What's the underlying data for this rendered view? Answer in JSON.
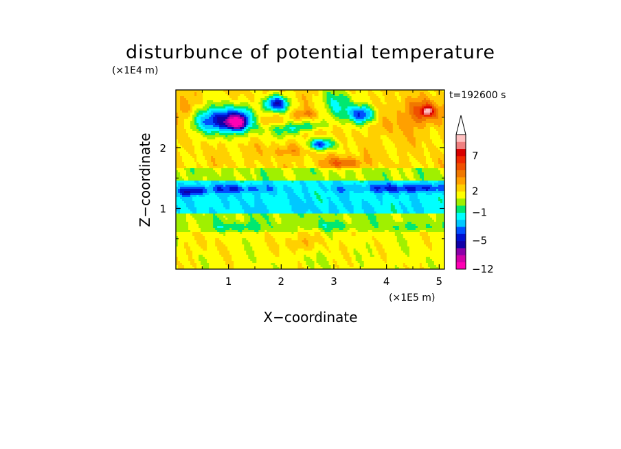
{
  "chart_data": {
    "type": "heatmap",
    "title": "disturbunce of potential temperature",
    "xlabel": "X−coordinate",
    "ylabel": "Z−coordinate",
    "x_unit": "(×1E5 m)",
    "y_unit": "(×1E4 m)",
    "time_label": "t=192600 s",
    "xlim": [
      0,
      5.1
    ],
    "ylim": [
      0,
      2.95
    ],
    "x_ticks": [
      {
        "value": 1,
        "label": "1"
      },
      {
        "value": 2,
        "label": "2"
      },
      {
        "value": 3,
        "label": "3"
      },
      {
        "value": 4,
        "label": "4"
      },
      {
        "value": 5,
        "label": "5"
      }
    ],
    "y_ticks": [
      {
        "value": 1,
        "label": "1"
      },
      {
        "value": 2,
        "label": "2"
      }
    ],
    "colorbar": {
      "levels": [
        {
          "min": -12,
          "max": -10,
          "color": "#ff00b4"
        },
        {
          "min": -10,
          "max": -8,
          "color": "#d200a8"
        },
        {
          "min": -8,
          "max": -6,
          "color": "#8c00a8"
        },
        {
          "min": -6,
          "max": -5,
          "color": "#1000a8"
        },
        {
          "min": -5,
          "max": -4,
          "color": "#0010d0"
        },
        {
          "min": -4,
          "max": -3,
          "color": "#0050ff"
        },
        {
          "min": -3,
          "max": -2,
          "color": "#00c8ff"
        },
        {
          "min": -2,
          "max": -1,
          "color": "#00ffff"
        },
        {
          "min": -1,
          "max": 0,
          "color": "#00e870"
        },
        {
          "min": 0,
          "max": 1,
          "color": "#a0f000"
        },
        {
          "min": 1,
          "max": 2,
          "color": "#ffff00"
        },
        {
          "min": 2,
          "max": 3,
          "color": "#ffd000"
        },
        {
          "min": 3,
          "max": 4,
          "color": "#ffa000"
        },
        {
          "min": 4,
          "max": 5,
          "color": "#f07800"
        },
        {
          "min": 5,
          "max": 6,
          "color": "#f05000"
        },
        {
          "min": 6,
          "max": 7,
          "color": "#f02800"
        },
        {
          "min": 7,
          "max": 8,
          "color": "#d80000"
        },
        {
          "min": 8,
          "max": 9,
          "color": "#f08080"
        },
        {
          "min": 9,
          "max": 10,
          "color": "#ffc0c0"
        }
      ],
      "tick_labels": [
        {
          "value": 7,
          "label": "7"
        },
        {
          "value": 2,
          "label": "2"
        },
        {
          "value": -1,
          "label": "−1"
        },
        {
          "value": -5,
          "label": "−5"
        },
        {
          "value": -12,
          "label": "−12"
        }
      ],
      "extend": "max",
      "extend_color": "#ffffff"
    },
    "features": [
      {
        "x": 2.55,
        "z": 0.15,
        "a": 0.3,
        "b": 0.15,
        "v": 0.8
      },
      {
        "x": 0.55,
        "z": 0.4,
        "a": 0.55,
        "b": 0.17,
        "v": 2.3
      },
      {
        "x": 2.3,
        "z": 0.42,
        "a": 0.35,
        "b": 0.14,
        "v": 2.2
      },
      {
        "x": 3.1,
        "z": 0.38,
        "a": 0.35,
        "b": 0.14,
        "v": 2.0
      },
      {
        "x": 4.75,
        "z": 0.45,
        "a": 0.4,
        "b": 0.15,
        "v": 2.3
      },
      {
        "x": 1.2,
        "z": 0.7,
        "a": 0.5,
        "b": 0.08,
        "v": -0.8
      },
      {
        "x": 3.0,
        "z": 0.72,
        "a": 0.55,
        "b": 0.06,
        "v": -0.6
      },
      {
        "x": 4.5,
        "z": 0.7,
        "a": 0.4,
        "b": 0.07,
        "v": -0.7
      },
      {
        "x": 0.3,
        "z": 1.28,
        "a": 0.3,
        "b": 0.07,
        "v": -4.5
      },
      {
        "x": 1.15,
        "z": 1.32,
        "a": 0.65,
        "b": 0.07,
        "v": -4.3
      },
      {
        "x": 4.4,
        "z": 1.33,
        "a": 1.1,
        "b": 0.07,
        "v": -4.5
      },
      {
        "x": 2.5,
        "z": 0.98,
        "a": 1.6,
        "b": 0.18,
        "v": -2.0
      },
      {
        "x": 0.95,
        "z": 2.45,
        "a": 0.55,
        "b": 0.22,
        "v": -5.0
      },
      {
        "x": 1.15,
        "z": 2.42,
        "a": 0.15,
        "b": 0.1,
        "v": -8.0
      },
      {
        "x": 1.9,
        "z": 2.72,
        "a": 0.22,
        "b": 0.13,
        "v": -5.0
      },
      {
        "x": 2.75,
        "z": 2.05,
        "a": 0.25,
        "b": 0.09,
        "v": -4.0
      },
      {
        "x": 3.55,
        "z": 2.55,
        "a": 0.25,
        "b": 0.14,
        "v": -3.5
      },
      {
        "x": 2.3,
        "z": 2.3,
        "a": 0.45,
        "b": 0.13,
        "v": -1.3
      },
      {
        "x": 3.1,
        "z": 2.7,
        "a": 0.3,
        "b": 0.3,
        "v": -1.0
      },
      {
        "x": 4.7,
        "z": 2.6,
        "a": 0.45,
        "b": 0.2,
        "v": 5.0
      },
      {
        "x": 4.78,
        "z": 2.6,
        "a": 0.12,
        "b": 0.08,
        "v": 7.5
      },
      {
        "x": 1.75,
        "z": 2.45,
        "a": 0.4,
        "b": 0.1,
        "v": 3.8
      },
      {
        "x": 2.15,
        "z": 1.95,
        "a": 0.35,
        "b": 0.1,
        "v": 3.5
      },
      {
        "x": 3.2,
        "z": 1.75,
        "a": 0.35,
        "b": 0.1,
        "v": 4.5
      },
      {
        "x": 2.6,
        "z": 2.25,
        "a": 0.3,
        "b": 0.08,
        "v": 4.0
      },
      {
        "x": 2.45,
        "z": 2.55,
        "a": 0.25,
        "b": 0.08,
        "v": 4.2
      },
      {
        "x": 4.25,
        "z": 2.35,
        "a": 0.5,
        "b": 0.18,
        "v": 3.0
      },
      {
        "x": 0.7,
        "z": 1.85,
        "a": 0.6,
        "b": 0.1,
        "v": 3.0
      },
      {
        "x": 0.1,
        "z": 2.6,
        "a": 0.25,
        "b": 0.2,
        "v": 3.5
      }
    ]
  }
}
